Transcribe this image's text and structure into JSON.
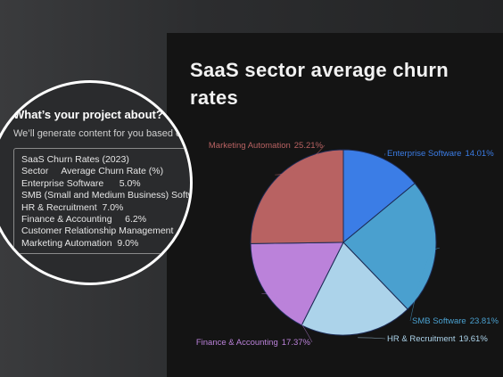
{
  "prompt_panel": {
    "title": "What’s your project about?",
    "subtitle": "We’ll generate content for you based on",
    "lines": [
      "SaaS Churn Rates (2023)",
      "Sector     Average Churn Rate (%)",
      "Enterprise Software      5.0%",
      "SMB (Small and Medium Business) Softw",
      "HR & Recruitment  7.0%",
      "Finance & Accounting     6.2%",
      "Customer Relationship Management",
      "Marketing Automation  9.0%"
    ]
  },
  "chart_data": {
    "type": "pie",
    "title": "SaaS sector average churn rates",
    "categories": [
      "Enterprise Software",
      "SMB Software",
      "HR & Recruitment",
      "Finance & Accounting",
      "Marketing Automation"
    ],
    "values": [
      14.01,
      23.81,
      19.61,
      17.37,
      25.21
    ],
    "value_labels": [
      "14.01%",
      "23.81%",
      "19.61%",
      "17.37%",
      "25.21%"
    ],
    "colors": [
      "#3b7de6",
      "#4aa0cf",
      "#acd3ea",
      "#bb82da",
      "#b86262"
    ]
  }
}
